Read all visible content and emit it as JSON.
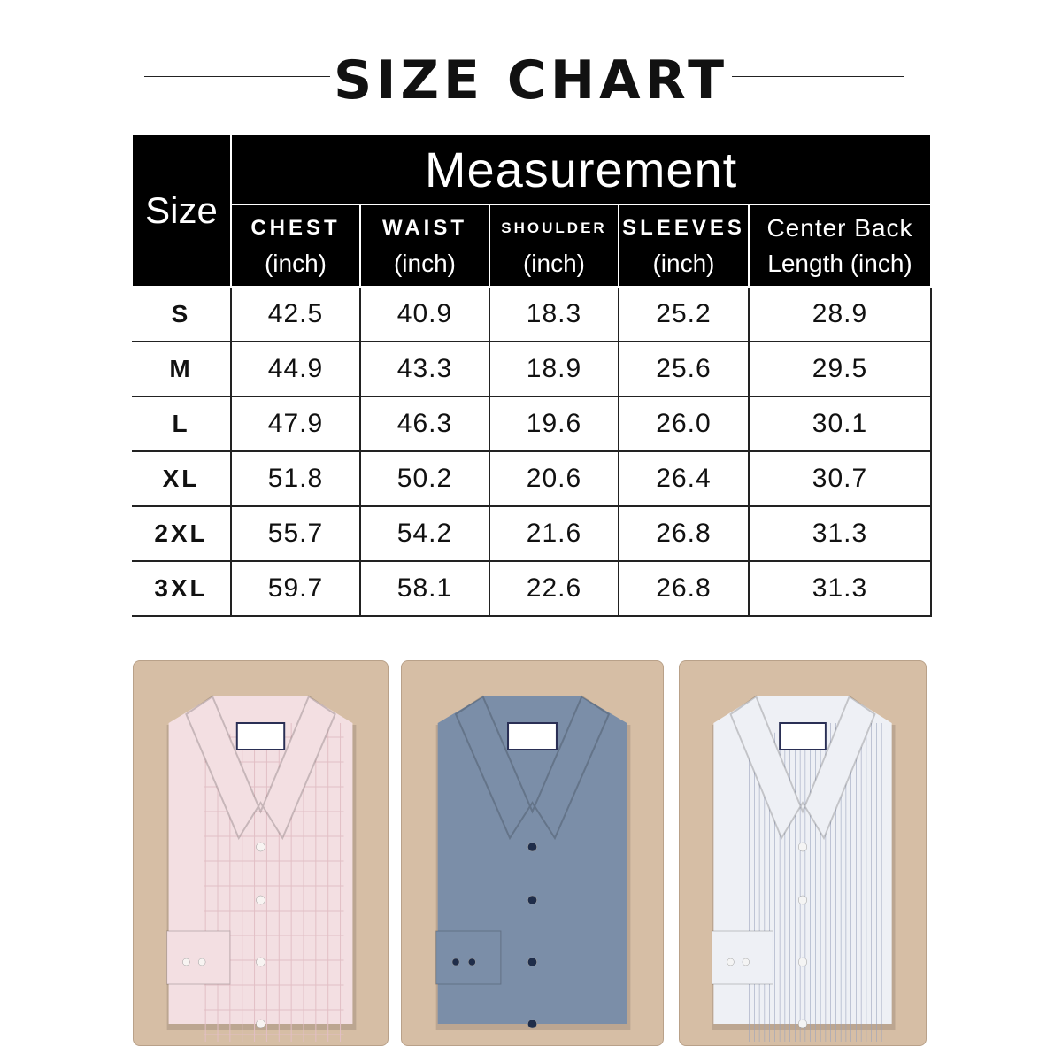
{
  "title": "SIZE CHART",
  "table": {
    "size_header": "Size",
    "group_header": "Measurement",
    "columns": [
      {
        "name": "CHEST",
        "unit": "(inch)"
      },
      {
        "name": "WAIST",
        "unit": "(inch)"
      },
      {
        "name": "SHOULDER",
        "unit": "(inch)"
      },
      {
        "name": "SLEEVES",
        "unit": "(inch)"
      },
      {
        "name": "Center Back",
        "unit": "Length (inch)"
      }
    ],
    "rows": [
      {
        "size": "S",
        "values": [
          "42.5",
          "40.9",
          "18.3",
          "25.2",
          "28.9"
        ]
      },
      {
        "size": "M",
        "values": [
          "44.9",
          "43.3",
          "18.9",
          "25.6",
          "29.5"
        ]
      },
      {
        "size": "L",
        "values": [
          "47.9",
          "46.3",
          "19.6",
          "26.0",
          "30.1"
        ]
      },
      {
        "size": "XL",
        "values": [
          "51.8",
          "50.2",
          "20.6",
          "26.4",
          "30.7"
        ]
      },
      {
        "size": "2XL",
        "values": [
          "55.7",
          "54.2",
          "21.6",
          "26.8",
          "31.3"
        ]
      },
      {
        "size": "3XL",
        "values": [
          "59.7",
          "58.1",
          "22.6",
          "26.8",
          "31.3"
        ]
      }
    ]
  },
  "shirts": [
    {
      "color": "#f3dfe2",
      "line": "#e2bfc5",
      "button": "#f8f4f2",
      "pattern": "check"
    },
    {
      "color": "#7b8ea8",
      "line": "#6a7d97",
      "button": "#1f2d4a",
      "pattern": "solid"
    },
    {
      "color": "#eef0f5",
      "line": "#9aa3bd",
      "button": "#f4f4f4",
      "pattern": "stripe"
    }
  ],
  "panel_bg": "#d6bea5"
}
